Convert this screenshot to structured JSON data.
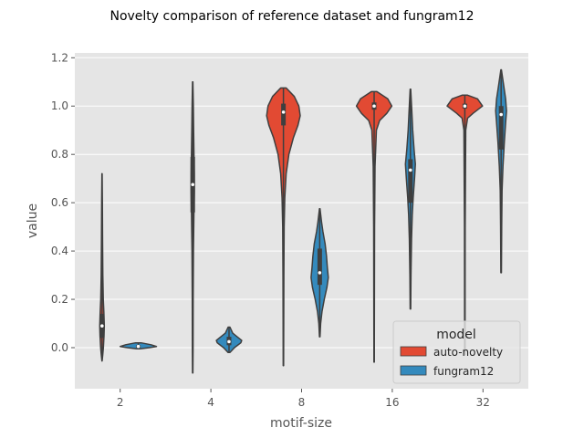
{
  "chart_data": {
    "type": "violin",
    "title": "Novelty comparison of reference dataset and fungram12",
    "xlabel": "motif-size",
    "ylabel": "value",
    "categories": [
      "2",
      "4",
      "8",
      "16",
      "32"
    ],
    "ylim": [
      -0.17,
      1.22
    ],
    "yticks": [
      0.0,
      0.2,
      0.4,
      0.6,
      0.8,
      1.0,
      1.2
    ],
    "ytick_labels": [
      "0.0",
      "0.2",
      "0.4",
      "0.6",
      "0.8",
      "1.0",
      "1.2"
    ],
    "grid": true,
    "legend": {
      "title": "model",
      "placement": "lower-right"
    },
    "series": [
      {
        "name": "auto-novelty",
        "color": "#E24A33",
        "violins": [
          {
            "category": "2",
            "min": -0.055,
            "max": 0.72,
            "q1": 0.04,
            "median": 0.09,
            "q3": 0.14,
            "profile": [
              [
                -0.055,
                0.1
              ],
              [
                -0.03,
                0.8
              ],
              [
                0.0,
                1.5
              ],
              [
                0.05,
                2.2
              ],
              [
                0.09,
                2.5
              ],
              [
                0.15,
                2.0
              ],
              [
                0.2,
                1.4
              ],
              [
                0.3,
                0.9
              ],
              [
                0.45,
                0.6
              ],
              [
                0.6,
                0.4
              ],
              [
                0.72,
                0.1
              ]
            ]
          },
          {
            "category": "4",
            "min": -0.105,
            "max": 1.1,
            "q1": 0.56,
            "median": 0.675,
            "q3": 0.79,
            "profile": [
              [
                -0.105,
                0.2
              ],
              [
                0.0,
                0.4
              ],
              [
                0.2,
                0.5
              ],
              [
                0.4,
                0.8
              ],
              [
                0.55,
                1.3
              ],
              [
                0.65,
                1.8
              ],
              [
                0.72,
                1.7
              ],
              [
                0.82,
                1.3
              ],
              [
                0.9,
                1.0
              ],
              [
                1.0,
                0.7
              ],
              [
                1.1,
                0.2
              ]
            ]
          },
          {
            "category": "8",
            "min": -0.075,
            "max": 1.075,
            "q1": 0.92,
            "median": 0.975,
            "q3": 1.01,
            "profile": [
              [
                -0.075,
                0.2
              ],
              [
                0.3,
                0.5
              ],
              [
                0.5,
                0.8
              ],
              [
                0.62,
                1.5
              ],
              [
                0.72,
                3.0
              ],
              [
                0.8,
                6.0
              ],
              [
                0.87,
                11.0
              ],
              [
                0.92,
                16.0
              ],
              [
                0.96,
                18.5
              ],
              [
                1.0,
                17.0
              ],
              [
                1.04,
                12.0
              ],
              [
                1.075,
                3.0
              ]
            ]
          },
          {
            "category": "16",
            "min": -0.06,
            "max": 1.06,
            "q1": 0.985,
            "median": 1.0,
            "q3": 1.015,
            "profile": [
              [
                -0.06,
                0.2
              ],
              [
                0.5,
                0.5
              ],
              [
                0.75,
                1.0
              ],
              [
                0.9,
                2.5
              ],
              [
                0.94,
                6.0
              ],
              [
                0.97,
                14.0
              ],
              [
                1.0,
                19.5
              ],
              [
                1.03,
                15.0
              ],
              [
                1.06,
                3.0
              ]
            ]
          },
          {
            "category": "32",
            "min": -0.03,
            "max": 1.045,
            "q1": 0.99,
            "median": 1.0,
            "q3": 1.01,
            "profile": [
              [
                -0.03,
                0.2
              ],
              [
                0.5,
                0.4
              ],
              [
                0.9,
                1.0
              ],
              [
                0.95,
                3.0
              ],
              [
                0.97,
                9.0
              ],
              [
                1.0,
                19.5
              ],
              [
                1.03,
                14.0
              ],
              [
                1.045,
                3.0
              ]
            ]
          }
        ]
      },
      {
        "name": "fungram12",
        "color": "#348ABD",
        "violins": [
          {
            "category": "2",
            "min": -0.005,
            "max": 0.02,
            "q1": 0.0,
            "median": 0.005,
            "q3": 0.01,
            "profile": [
              [
                -0.005,
                2.0
              ],
              [
                0.0,
                12.0
              ],
              [
                0.005,
                20.0
              ],
              [
                0.012,
                14.0
              ],
              [
                0.02,
                3.0
              ]
            ]
          },
          {
            "category": "4",
            "min": -0.02,
            "max": 0.085,
            "q1": 0.01,
            "median": 0.025,
            "q3": 0.045,
            "profile": [
              [
                -0.02,
                1.0
              ],
              [
                0.0,
                6.0
              ],
              [
                0.02,
                13.0
              ],
              [
                0.03,
                14.0
              ],
              [
                0.045,
                9.0
              ],
              [
                0.06,
                4.0
              ],
              [
                0.085,
                1.0
              ]
            ]
          },
          {
            "category": "8",
            "min": 0.045,
            "max": 0.575,
            "q1": 0.26,
            "median": 0.31,
            "q3": 0.41,
            "profile": [
              [
                0.045,
                0.3
              ],
              [
                0.1,
                1.0
              ],
              [
                0.15,
                2.5
              ],
              [
                0.2,
                5.0
              ],
              [
                0.25,
                8.0
              ],
              [
                0.29,
                9.5
              ],
              [
                0.33,
                8.5
              ],
              [
                0.38,
                7.5
              ],
              [
                0.43,
                6.0
              ],
              [
                0.48,
                3.5
              ],
              [
                0.52,
                2.0
              ],
              [
                0.575,
                0.3
              ]
            ]
          },
          {
            "category": "16",
            "min": 0.16,
            "max": 1.07,
            "q1": 0.6,
            "median": 0.735,
            "q3": 0.78,
            "profile": [
              [
                0.16,
                0.3
              ],
              [
                0.3,
                0.6
              ],
              [
                0.45,
                1.2
              ],
              [
                0.55,
                2.0
              ],
              [
                0.62,
                3.0
              ],
              [
                0.7,
                4.5
              ],
              [
                0.76,
                5.5
              ],
              [
                0.82,
                4.0
              ],
              [
                0.9,
                2.5
              ],
              [
                0.98,
                1.5
              ],
              [
                1.07,
                0.3
              ]
            ]
          },
          {
            "category": "32",
            "min": 0.31,
            "max": 1.15,
            "q1": 0.82,
            "median": 0.965,
            "q3": 1.0,
            "profile": [
              [
                0.31,
                0.3
              ],
              [
                0.5,
                0.6
              ],
              [
                0.65,
                1.0
              ],
              [
                0.75,
                2.0
              ],
              [
                0.85,
                3.5
              ],
              [
                0.93,
                5.0
              ],
              [
                0.98,
                6.0
              ],
              [
                1.03,
                5.0
              ],
              [
                1.08,
                3.0
              ],
              [
                1.15,
                0.3
              ]
            ]
          }
        ]
      }
    ]
  }
}
